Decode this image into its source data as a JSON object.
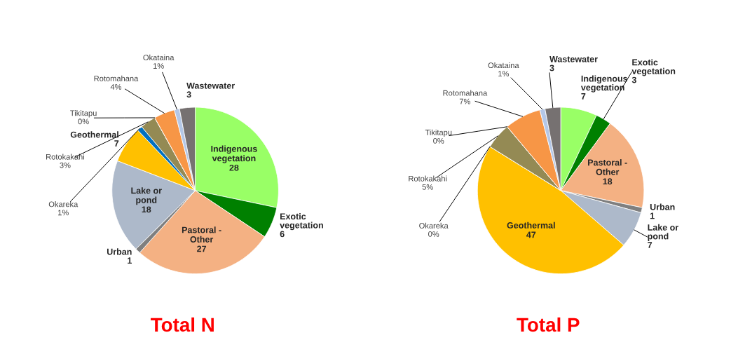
{
  "chart_data": [
    {
      "type": "pie",
      "title": "Total N",
      "categories": [
        "Indigenous\nvegetation",
        "Exotic\nvegetation",
        "Pastoral -\nOther",
        "Urban",
        "Lake or\npond",
        "Geothermal",
        "Okareka",
        "Rotokakahi",
        "Tikitapu",
        "Rotomahana",
        "Okataina",
        "Wastewater"
      ],
      "colors": [
        "#99ff66",
        "#008000",
        "#f4b183",
        "#7f7f7f",
        "#adb9ca",
        "#ffc000",
        "#0070c0",
        "#948a54",
        "#404040",
        "#f79646",
        "#b4c7e7",
        "#767171"
      ],
      "values": [
        28,
        6,
        27,
        1,
        18,
        7,
        1,
        3,
        0,
        4,
        1,
        3
      ],
      "value_labels": [
        "28",
        "6",
        "27",
        "1",
        "18",
        "7",
        "1%",
        "3%",
        "0%",
        "4%",
        "1%",
        "3"
      ]
    },
    {
      "type": "pie",
      "title": "Total P",
      "categories": [
        "Indigenous\nvegetation",
        "Exotic\nvegetation",
        "Pastoral -\nOther",
        "Urban",
        "Lake or\npond",
        "Geothermal",
        "Okareka",
        "Rotokakahi",
        "Tikitapu",
        "Rotomahana",
        "Okataina",
        "Wastewater"
      ],
      "colors": [
        "#99ff66",
        "#008000",
        "#f4b183",
        "#7f7f7f",
        "#adb9ca",
        "#ffc000",
        "#0070c0",
        "#948a54",
        "#404040",
        "#f79646",
        "#b4c7e7",
        "#767171"
      ],
      "values": [
        7,
        3,
        18,
        1,
        7,
        47,
        0,
        5,
        0,
        7,
        1,
        3
      ],
      "value_labels": [
        "7",
        "3",
        "18",
        "1",
        "7",
        "47",
        "0%",
        "5%",
        "0%",
        "7%",
        "1%",
        "3"
      ]
    }
  ]
}
